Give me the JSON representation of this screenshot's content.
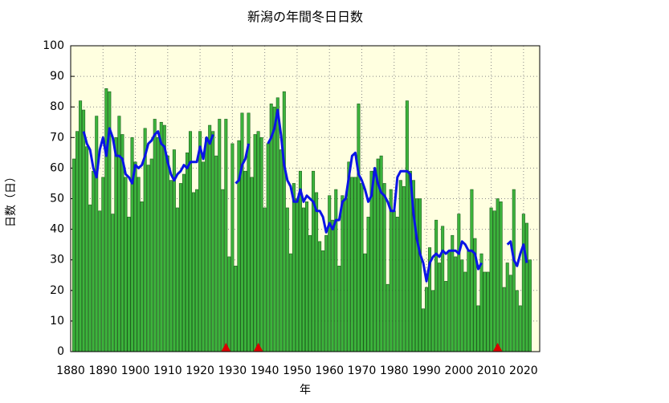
{
  "chart_data": {
    "type": "bar",
    "title": "新潟の年間冬日日数",
    "xlabel": "年",
    "ylabel": "日数（日）",
    "xlim": [
      1880,
      2025
    ],
    "ylim": [
      0,
      100
    ],
    "xticks": [
      1880,
      1890,
      1900,
      1910,
      1920,
      1930,
      1940,
      1950,
      1960,
      1970,
      1980,
      1990,
      2000,
      2010,
      2020
    ],
    "yticks": [
      0,
      10,
      20,
      30,
      40,
      50,
      60,
      70,
      80,
      90,
      100
    ],
    "grid": true,
    "x": [
      1881,
      1882,
      1883,
      1884,
      1885,
      1886,
      1887,
      1888,
      1889,
      1890,
      1891,
      1892,
      1893,
      1894,
      1895,
      1896,
      1897,
      1898,
      1899,
      1900,
      1901,
      1902,
      1903,
      1904,
      1905,
      1906,
      1907,
      1908,
      1909,
      1910,
      1911,
      1912,
      1913,
      1914,
      1915,
      1916,
      1917,
      1918,
      1919,
      1920,
      1921,
      1922,
      1923,
      1924,
      1925,
      1926,
      1927,
      1928,
      1929,
      1930,
      1931,
      1932,
      1933,
      1934,
      1935,
      1936,
      1937,
      1938,
      1939,
      1940,
      1941,
      1942,
      1943,
      1944,
      1945,
      1946,
      1947,
      1948,
      1949,
      1950,
      1951,
      1952,
      1953,
      1954,
      1955,
      1956,
      1957,
      1958,
      1959,
      1960,
      1961,
      1962,
      1963,
      1964,
      1965,
      1966,
      1967,
      1968,
      1969,
      1970,
      1971,
      1972,
      1973,
      1974,
      1975,
      1976,
      1977,
      1978,
      1979,
      1980,
      1981,
      1982,
      1983,
      1984,
      1985,
      1986,
      1987,
      1988,
      1989,
      1990,
      1991,
      1992,
      1993,
      1994,
      1995,
      1996,
      1997,
      1998,
      1999,
      2000,
      2001,
      2002,
      2003,
      2004,
      2005,
      2006,
      2007,
      2008,
      2009,
      2010,
      2011,
      2012,
      2013,
      2014,
      2015,
      2016,
      2017,
      2018,
      2019,
      2020,
      2021,
      2022
    ],
    "bars": {
      "color": "#3cb43c",
      "values": [
        63,
        72,
        82,
        79,
        67,
        48,
        59,
        77,
        46,
        57,
        86,
        85,
        45,
        70,
        77,
        71,
        57,
        44,
        70,
        62,
        57,
        49,
        73,
        61,
        63,
        76,
        70,
        75,
        74,
        64,
        56,
        66,
        47,
        55,
        58,
        65,
        72,
        52,
        53,
        72,
        62,
        70,
        74,
        72,
        64,
        76,
        53,
        76,
        31,
        68,
        28,
        69,
        78,
        59,
        78,
        57,
        71,
        72,
        70,
        47,
        68,
        81,
        80,
        83,
        66,
        85,
        47,
        32,
        55,
        50,
        59,
        47,
        49,
        38,
        59,
        52,
        36,
        33,
        38,
        51,
        43,
        53,
        28,
        51,
        50,
        62,
        57,
        57,
        81,
        55,
        32,
        44,
        59,
        59,
        63,
        64,
        55,
        22,
        53,
        46,
        44,
        56,
        54,
        82,
        59,
        56,
        50,
        50,
        14,
        21,
        34,
        20,
        43,
        29,
        41,
        23,
        33,
        38,
        31,
        45,
        30,
        26,
        33,
        53,
        37,
        15,
        32,
        26,
        26,
        47,
        46,
        50,
        49,
        21,
        29,
        25,
        53,
        20,
        15,
        45,
        42,
        30
      ]
    },
    "line": {
      "color": "#0a14e6",
      "values": [
        null,
        null,
        null,
        72,
        68,
        66,
        60,
        57,
        66,
        70,
        64,
        73,
        70,
        64,
        64,
        63,
        58,
        57,
        55,
        61,
        60,
        61,
        64,
        68,
        69,
        71,
        72,
        68,
        67,
        62,
        58,
        56,
        58,
        59,
        61,
        60,
        62,
        62,
        62,
        67,
        63,
        70,
        68,
        71,
        null,
        null,
        null,
        null,
        null,
        null,
        55,
        56,
        61,
        63,
        68,
        null,
        null,
        null,
        null,
        null,
        68,
        70,
        73,
        79,
        71,
        61,
        56,
        54,
        49,
        49,
        53,
        49,
        51,
        50,
        49,
        46,
        46,
        44,
        39,
        42,
        40,
        43,
        43,
        49,
        50,
        57,
        64,
        65,
        58,
        56,
        53,
        49,
        51,
        60,
        55,
        52,
        51,
        49,
        46,
        46,
        57,
        59,
        59,
        59,
        58,
        45,
        37,
        32,
        29,
        23,
        29,
        31,
        32,
        31,
        33,
        32,
        33,
        33,
        33,
        32,
        36,
        35,
        33,
        33,
        32,
        27,
        29,
        null,
        null,
        null,
        null,
        null,
        null,
        null,
        35,
        36,
        30,
        28,
        32,
        35,
        29,
        null
      ]
    },
    "events": {
      "color": "#dd0000",
      "x": [
        1928,
        1938,
        2012
      ]
    }
  }
}
